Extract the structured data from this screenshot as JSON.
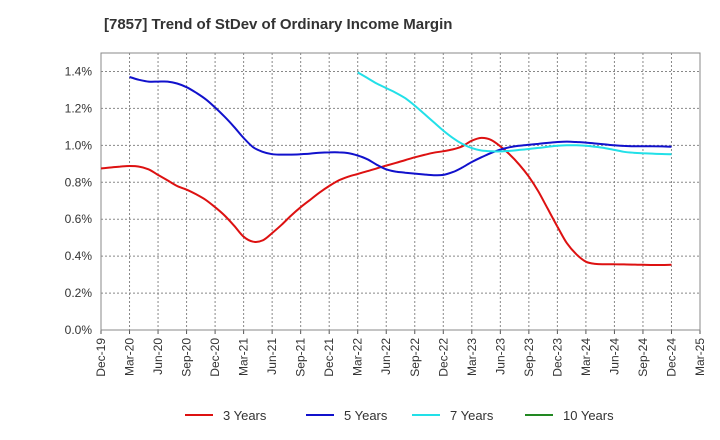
{
  "chart_data": {
    "type": "line",
    "title": "[7857]  Trend of StDev of Ordinary Income Margin",
    "xlabel": "",
    "ylabel": "",
    "x_ticks": [
      "Dec-19",
      "Mar-20",
      "Jun-20",
      "Sep-20",
      "Dec-20",
      "Mar-21",
      "Jun-21",
      "Sep-21",
      "Dec-21",
      "Mar-22",
      "Jun-22",
      "Sep-22",
      "Dec-22",
      "Mar-23",
      "Jun-23",
      "Sep-23",
      "Dec-23",
      "Mar-24",
      "Jun-24",
      "Sep-24",
      "Dec-24",
      "Mar-25"
    ],
    "y_ticks": [
      "0.0%",
      "0.2%",
      "0.4%",
      "0.6%",
      "0.8%",
      "1.0%",
      "1.2%",
      "1.4%"
    ],
    "ylim": [
      0,
      1.5
    ],
    "y_unit": "%",
    "grid": true,
    "legend_position": "bottom",
    "series": [
      {
        "name": "3 Years",
        "color": "#dd1111",
        "x": [
          "Dec-19",
          "Jan-20",
          "Feb-20",
          "Mar-20",
          "Apr-20",
          "May-20",
          "Jun-20",
          "Jul-20",
          "Aug-20",
          "Sep-20",
          "Oct-20",
          "Nov-20",
          "Dec-20",
          "Jan-21",
          "Feb-21",
          "Mar-21",
          "Apr-21",
          "May-21",
          "Jun-21",
          "Jul-21",
          "Aug-21",
          "Sep-21",
          "Oct-21",
          "Nov-21",
          "Dec-21",
          "Jan-22",
          "Feb-22",
          "Mar-22",
          "Apr-22",
          "May-22",
          "Jun-22",
          "Jul-22",
          "Aug-22",
          "Sep-22",
          "Oct-22",
          "Nov-22",
          "Dec-22",
          "Jan-23",
          "Feb-23",
          "Mar-23",
          "Apr-23",
          "May-23",
          "Jun-23",
          "Jul-23",
          "Aug-23",
          "Sep-23",
          "Oct-23",
          "Nov-23",
          "Dec-23",
          "Jan-24",
          "Feb-24",
          "Mar-24",
          "Apr-24",
          "May-24",
          "Jun-24",
          "Jul-24",
          "Aug-24",
          "Sep-24",
          "Oct-24",
          "Nov-24",
          "Dec-24"
        ],
        "values": [
          0.875,
          0.88,
          0.885,
          0.888,
          0.885,
          0.87,
          0.84,
          0.81,
          0.78,
          0.76,
          0.735,
          0.705,
          0.665,
          0.62,
          0.565,
          0.505,
          0.478,
          0.485,
          0.525,
          0.57,
          0.62,
          0.665,
          0.705,
          0.745,
          0.78,
          0.81,
          0.83,
          0.845,
          0.86,
          0.875,
          0.89,
          0.905,
          0.92,
          0.935,
          0.948,
          0.96,
          0.968,
          0.978,
          0.995,
          1.025,
          1.04,
          1.03,
          0.995,
          0.95,
          0.895,
          0.83,
          0.75,
          0.655,
          0.56,
          0.47,
          0.41,
          0.37,
          0.358,
          0.356,
          0.356,
          0.355,
          0.354,
          0.353,
          0.352,
          0.352,
          0.353
        ]
      },
      {
        "name": "5 Years",
        "color": "#1111cc",
        "x": [
          "Mar-20",
          "Apr-20",
          "May-20",
          "Jun-20",
          "Jul-20",
          "Aug-20",
          "Sep-20",
          "Oct-20",
          "Nov-20",
          "Dec-20",
          "Jan-21",
          "Feb-21",
          "Mar-21",
          "Apr-21",
          "May-21",
          "Jun-21",
          "Jul-21",
          "Aug-21",
          "Sep-21",
          "Oct-21",
          "Nov-21",
          "Dec-21",
          "Jan-22",
          "Feb-22",
          "Mar-22",
          "Apr-22",
          "May-22",
          "Jun-22",
          "Jul-22",
          "Aug-22",
          "Sep-22",
          "Oct-22",
          "Nov-22",
          "Dec-22",
          "Jan-23",
          "Feb-23",
          "Mar-23",
          "Apr-23",
          "May-23",
          "Jun-23",
          "Jul-23",
          "Aug-23",
          "Sep-23",
          "Oct-23",
          "Nov-23",
          "Dec-23",
          "Jan-24",
          "Feb-24",
          "Mar-24",
          "Apr-24",
          "May-24",
          "Jun-24",
          "Jul-24",
          "Aug-24",
          "Sep-24",
          "Oct-24",
          "Nov-24",
          "Dec-24"
        ],
        "values": [
          1.37,
          1.355,
          1.345,
          1.345,
          1.345,
          1.335,
          1.315,
          1.285,
          1.25,
          1.205,
          1.155,
          1.1,
          1.04,
          0.99,
          0.965,
          0.952,
          0.95,
          0.95,
          0.952,
          0.955,
          0.96,
          0.962,
          0.962,
          0.958,
          0.945,
          0.925,
          0.895,
          0.87,
          0.858,
          0.852,
          0.847,
          0.842,
          0.838,
          0.84,
          0.855,
          0.88,
          0.91,
          0.935,
          0.958,
          0.977,
          0.99,
          0.998,
          1.003,
          1.008,
          1.013,
          1.018,
          1.02,
          1.018,
          1.015,
          1.01,
          1.005,
          1.0,
          0.997,
          0.995,
          0.995,
          0.995,
          0.994,
          0.992
        ]
      },
      {
        "name": "7 Years",
        "color": "#22e0e8",
        "x": [
          "Mar-22",
          "Apr-22",
          "May-22",
          "Jun-22",
          "Jul-22",
          "Aug-22",
          "Sep-22",
          "Oct-22",
          "Nov-22",
          "Dec-22",
          "Jan-23",
          "Feb-23",
          "Mar-23",
          "Apr-23",
          "May-23",
          "Jun-23",
          "Jul-23",
          "Aug-23",
          "Sep-23",
          "Oct-23",
          "Nov-23",
          "Dec-23",
          "Jan-24",
          "Feb-24",
          "Mar-24",
          "Apr-24",
          "May-24",
          "Jun-24",
          "Jul-24",
          "Aug-24",
          "Sep-24",
          "Oct-24",
          "Nov-24",
          "Dec-24"
        ],
        "values": [
          1.395,
          1.365,
          1.335,
          1.31,
          1.285,
          1.255,
          1.215,
          1.17,
          1.125,
          1.08,
          1.04,
          1.008,
          0.985,
          0.972,
          0.968,
          0.967,
          0.97,
          0.975,
          0.98,
          0.986,
          0.992,
          0.998,
          1.0,
          1.0,
          0.998,
          0.992,
          0.985,
          0.975,
          0.965,
          0.96,
          0.957,
          0.955,
          0.953,
          0.952
        ]
      },
      {
        "name": "10 Years",
        "color": "#228822",
        "x": [],
        "values": []
      }
    ]
  }
}
